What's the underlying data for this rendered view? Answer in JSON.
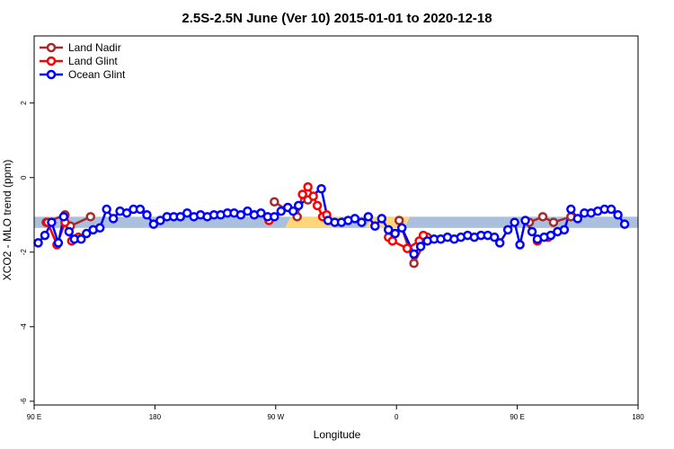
{
  "chart_data": {
    "type": "line",
    "title": "2.5S-2.5N June (Ver 10)   2015-01-01 to 2020-12-18",
    "xlabel": "Longitude",
    "ylabel": "XCO2 - MLO trend (ppm)",
    "x_ticks": [
      {
        "lon": 90,
        "label": "90 E"
      },
      {
        "lon": 180,
        "label": "180"
      },
      {
        "lon": 270,
        "label": "90 W"
      },
      {
        "lon": 360,
        "label": "0"
      },
      {
        "lon": 450,
        "label": "90 E"
      },
      {
        "lon": 540,
        "label": "180"
      }
    ],
    "xlim": [
      90,
      540
    ],
    "ylim": [
      -6.1,
      3.8
    ],
    "y_ticks": [
      -6,
      -4,
      -2,
      0,
      2
    ],
    "grid": false,
    "legend_position": "top-left",
    "series": [
      {
        "name": "Land Nadir",
        "color": "#a52a2a",
        "points": [
          [
            99,
            -1.2
          ],
          [
            113,
            -1.0
          ],
          [
            117,
            -1.3
          ],
          [
            132,
            -1.05
          ],
          [
            269,
            -0.65
          ],
          [
            286,
            -1.05
          ],
          [
            290,
            -0.45
          ],
          [
            294,
            -0.6
          ],
          [
            362,
            -1.15
          ],
          [
            373,
            -2.3
          ],
          [
            383,
            -1.6
          ],
          [
            459,
            -1.2
          ],
          [
            469,
            -1.05
          ],
          [
            477,
            -1.2
          ],
          [
            490,
            -1.05
          ]
        ]
      },
      {
        "name": "Land Glint",
        "color": "#ff0000",
        "points": [
          [
            100,
            -1.2
          ],
          [
            107,
            -1.8
          ],
          [
            113,
            -1.2
          ],
          [
            118,
            -1.7
          ],
          [
            123,
            -1.6
          ],
          [
            265,
            -1.15
          ],
          [
            290,
            -0.45
          ],
          [
            294,
            -0.25
          ],
          [
            298,
            -0.5
          ],
          [
            301,
            -0.75
          ],
          [
            305,
            -1.05
          ],
          [
            308,
            -1.0
          ],
          [
            354,
            -1.6
          ],
          [
            357,
            -1.7
          ],
          [
            368,
            -1.9
          ],
          [
            377,
            -1.7
          ],
          [
            380,
            -1.55
          ],
          [
            465,
            -1.7
          ],
          [
            473,
            -1.6
          ]
        ]
      },
      {
        "name": "Ocean Glint",
        "color": "#0000ff",
        "points": [
          [
            93,
            -1.75
          ],
          [
            98,
            -1.55
          ],
          [
            103,
            -1.2
          ],
          [
            108,
            -1.75
          ],
          [
            112,
            -1.05
          ],
          [
            116,
            -1.45
          ],
          [
            120,
            -1.65
          ],
          [
            125,
            -1.65
          ],
          [
            129,
            -1.5
          ],
          [
            134,
            -1.4
          ],
          [
            139,
            -1.35
          ],
          [
            144,
            -0.85
          ],
          [
            149,
            -1.1
          ],
          [
            154,
            -0.9
          ],
          [
            159,
            -0.95
          ],
          [
            164,
            -0.85
          ],
          [
            169,
            -0.85
          ],
          [
            174,
            -1.0
          ],
          [
            179,
            -1.25
          ],
          [
            184,
            -1.15
          ],
          [
            189,
            -1.05
          ],
          [
            194,
            -1.05
          ],
          [
            199,
            -1.05
          ],
          [
            204,
            -0.95
          ],
          [
            209,
            -1.05
          ],
          [
            214,
            -1.0
          ],
          [
            219,
            -1.05
          ],
          [
            224,
            -1.0
          ],
          [
            229,
            -1.0
          ],
          [
            234,
            -0.95
          ],
          [
            239,
            -0.95
          ],
          [
            244,
            -1.0
          ],
          [
            249,
            -0.9
          ],
          [
            254,
            -1.0
          ],
          [
            259,
            -0.95
          ],
          [
            264,
            -1.05
          ],
          [
            269,
            -1.05
          ],
          [
            274,
            -0.9
          ],
          [
            279,
            -0.8
          ],
          [
            283,
            -0.9
          ],
          [
            287,
            -0.75
          ],
          [
            304,
            -0.3
          ],
          [
            309,
            -1.15
          ],
          [
            314,
            -1.2
          ],
          [
            319,
            -1.2
          ],
          [
            324,
            -1.15
          ],
          [
            329,
            -1.1
          ],
          [
            334,
            -1.2
          ],
          [
            339,
            -1.05
          ],
          [
            344,
            -1.3
          ],
          [
            349,
            -1.1
          ],
          [
            354,
            -1.4
          ],
          [
            359,
            -1.5
          ],
          [
            364,
            -1.35
          ],
          [
            373,
            -2.05
          ],
          [
            378,
            -1.85
          ],
          [
            383,
            -1.7
          ],
          [
            388,
            -1.65
          ],
          [
            393,
            -1.65
          ],
          [
            398,
            -1.6
          ],
          [
            403,
            -1.65
          ],
          [
            408,
            -1.6
          ],
          [
            413,
            -1.55
          ],
          [
            418,
            -1.6
          ],
          [
            423,
            -1.55
          ],
          [
            428,
            -1.55
          ],
          [
            433,
            -1.6
          ],
          [
            437,
            -1.75
          ],
          [
            443,
            -1.4
          ],
          [
            448,
            -1.2
          ],
          [
            452,
            -1.8
          ],
          [
            456,
            -1.15
          ],
          [
            461,
            -1.45
          ],
          [
            465,
            -1.65
          ],
          [
            470,
            -1.6
          ],
          [
            475,
            -1.55
          ],
          [
            480,
            -1.45
          ],
          [
            485,
            -1.4
          ],
          [
            490,
            -0.85
          ],
          [
            495,
            -1.1
          ],
          [
            500,
            -0.95
          ],
          [
            505,
            -0.95
          ],
          [
            510,
            -0.9
          ],
          [
            515,
            -0.85
          ],
          [
            520,
            -0.85
          ],
          [
            525,
            -1.0
          ],
          [
            530,
            -1.25
          ]
        ]
      }
    ],
    "bands": {
      "blue_color": "#aac0dd",
      "orange_color": "#ffd67a",
      "orange_spans": [
        [
          277,
          315
        ],
        [
          337,
          366
        ]
      ]
    }
  }
}
